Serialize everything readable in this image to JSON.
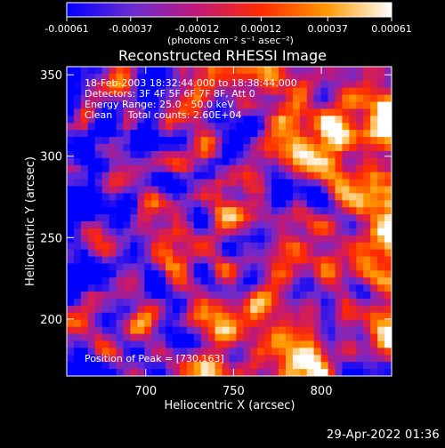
{
  "chart_data": {
    "type": "heatmap",
    "title": "Reconstructed RHESSI Image",
    "xlabel": "Heliocentric X (arcsec)",
    "ylabel": "Heliocentric Y (arcsec)",
    "xlim": [
      655,
      840
    ],
    "ylim": [
      165,
      355
    ],
    "xticks": [
      700,
      750,
      800
    ],
    "yticks": [
      200,
      250,
      300,
      350
    ],
    "colorbar": {
      "ticks": [
        "-0.00061",
        "-0.00037",
        "-0.00012",
        "0.00012",
        "0.00037",
        "0.00061"
      ],
      "tick_values": [
        -0.00061,
        -0.00037,
        -0.00012,
        0.00012,
        0.00037,
        0.00061
      ],
      "range": [
        -0.00061,
        0.00061
      ],
      "unit_label": "(photons cm⁻² s⁻¹ asec⁻²)",
      "colormap": [
        "#0000ff",
        "#6a2bd1",
        "#c0187a",
        "#ff2a00",
        "#ff9900",
        "#ffffff"
      ]
    },
    "annotations": [
      "18-Feb-2003 18:32:44.000 to 18:38:44.000",
      "Detectors: 3F 4F 5F 6F 7F 8F, Att 0",
      "Energy Range: 25.0 - 50.0 keV",
      "Clean     Total counts: 2.60E+04"
    ],
    "peak_label": "Position of Peak = [730,163]",
    "peak_position": [
      730,
      163
    ],
    "image_extent": {
      "x": [
        655,
        840
      ],
      "y": [
        165,
        355
      ]
    },
    "field_character": "noisy background mostly negative (purple/blue) in the left and upper-left, bright orange/yellow sources along the right side and near the bottom center"
  },
  "footer": {
    "timestamp": "29-Apr-2022 01:36"
  }
}
